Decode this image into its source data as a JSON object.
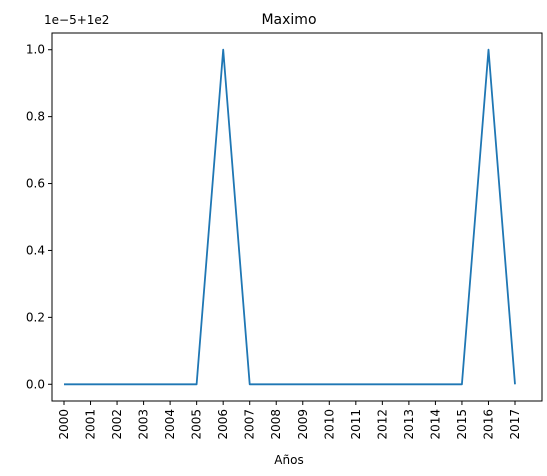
{
  "chart_data": {
    "type": "line",
    "title": "Maximo",
    "xlabel": "Años",
    "ylabel": "",
    "offset_text": "1e−5+1e2",
    "x": [
      "2000",
      "2001",
      "2002",
      "2003",
      "2004",
      "2005",
      "2006",
      "2007",
      "2008",
      "2009",
      "2010",
      "2011",
      "2012",
      "2013",
      "2014",
      "2015",
      "2016",
      "2017"
    ],
    "series": [
      {
        "values": [
          0,
          0,
          0,
          0,
          0,
          0,
          1.0,
          0,
          0,
          0,
          0,
          0,
          0,
          0,
          0,
          0,
          1.0,
          0
        ],
        "color": "#1f77b4"
      }
    ],
    "y_ticks": [
      0.0,
      0.2,
      0.4,
      0.6,
      0.8,
      1.0
    ],
    "y_tick_labels": [
      "0.0",
      "0.2",
      "0.4",
      "0.6",
      "0.8",
      "1.0"
    ],
    "ylim": [
      -0.05,
      1.05
    ],
    "grid": false,
    "legend": "none"
  }
}
